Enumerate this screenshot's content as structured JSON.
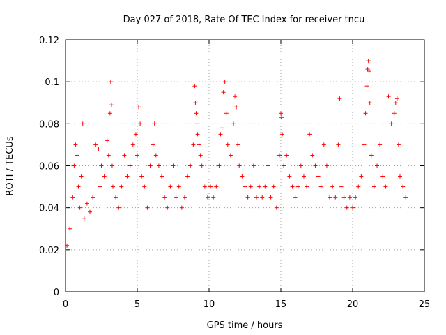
{
  "chart_data": {
    "type": "scatter",
    "title": "Day 027 of 2018, Rate Of TEC Index for receiver tncu",
    "xlabel": "GPS time / hours",
    "ylabel": "ROTI / TECUs",
    "xlim": [
      0,
      25
    ],
    "ylim": [
      0,
      0.12
    ],
    "xticks": [
      0,
      5,
      10,
      15,
      20,
      25
    ],
    "yticks": [
      0,
      0.02,
      0.04,
      0.06,
      0.08,
      0.1,
      0.12
    ],
    "xtick_labels": [
      "0",
      "5",
      "10",
      "15",
      "20",
      "25"
    ],
    "ytick_labels": [
      "0",
      "0.02",
      "0.04",
      "0.06",
      "0.08",
      "0.1",
      "0.12"
    ],
    "grid": true,
    "marker": "plus",
    "color": "#ff0000",
    "series": [
      {
        "name": "ROTI",
        "x": [
          0.1,
          0.3,
          0.5,
          0.6,
          0.7,
          0.8,
          0.9,
          1.0,
          1.1,
          1.2,
          1.3,
          1.5,
          1.7,
          1.9,
          2.1,
          2.3,
          2.4,
          2.5,
          2.7,
          2.9,
          3.0,
          3.1,
          3.15,
          3.2,
          3.25,
          3.3,
          3.5,
          3.7,
          3.9,
          4.1,
          4.3,
          4.5,
          4.7,
          4.9,
          5.0,
          5.1,
          5.2,
          5.3,
          5.5,
          5.7,
          5.9,
          6.1,
          6.2,
          6.3,
          6.5,
          6.7,
          6.9,
          7.1,
          7.3,
          7.5,
          7.7,
          7.9,
          8.1,
          8.3,
          8.5,
          8.7,
          8.9,
          9.0,
          9.05,
          9.1,
          9.15,
          9.2,
          9.3,
          9.4,
          9.5,
          9.7,
          9.9,
          10.1,
          10.3,
          10.5,
          10.7,
          10.8,
          10.9,
          11.0,
          11.1,
          11.2,
          11.3,
          11.5,
          11.7,
          11.8,
          11.9,
          12.0,
          12.1,
          12.3,
          12.5,
          12.7,
          12.9,
          13.1,
          13.3,
          13.5,
          13.7,
          13.9,
          14.1,
          14.3,
          14.5,
          14.7,
          14.9,
          15.0,
          15.05,
          15.1,
          15.2,
          15.4,
          15.6,
          15.8,
          16.0,
          16.2,
          16.4,
          16.6,
          16.8,
          17.0,
          17.2,
          17.4,
          17.6,
          17.8,
          18.0,
          18.2,
          18.4,
          18.6,
          18.8,
          19.0,
          19.1,
          19.2,
          19.4,
          19.6,
          19.8,
          20.0,
          20.2,
          20.4,
          20.6,
          20.8,
          20.9,
          21.0,
          21.05,
          21.1,
          21.15,
          21.2,
          21.3,
          21.5,
          21.7,
          21.9,
          22.1,
          22.3,
          22.5,
          22.7,
          22.9,
          23.0,
          23.1,
          23.2,
          23.3,
          23.5,
          23.7
        ],
        "y": [
          0.022,
          0.03,
          0.045,
          0.06,
          0.07,
          0.065,
          0.05,
          0.04,
          0.055,
          0.08,
          0.035,
          0.042,
          0.038,
          0.045,
          0.07,
          0.068,
          0.05,
          0.06,
          0.055,
          0.072,
          0.065,
          0.085,
          0.1,
          0.089,
          0.06,
          0.05,
          0.045,
          0.04,
          0.05,
          0.065,
          0.055,
          0.06,
          0.07,
          0.075,
          0.065,
          0.088,
          0.08,
          0.055,
          0.05,
          0.04,
          0.06,
          0.07,
          0.08,
          0.065,
          0.06,
          0.055,
          0.045,
          0.04,
          0.05,
          0.06,
          0.045,
          0.05,
          0.04,
          0.045,
          0.055,
          0.06,
          0.07,
          0.098,
          0.09,
          0.085,
          0.08,
          0.075,
          0.07,
          0.065,
          0.06,
          0.05,
          0.045,
          0.05,
          0.045,
          0.05,
          0.06,
          0.075,
          0.078,
          0.095,
          0.1,
          0.085,
          0.07,
          0.065,
          0.08,
          0.093,
          0.088,
          0.07,
          0.06,
          0.055,
          0.05,
          0.045,
          0.05,
          0.06,
          0.045,
          0.05,
          0.045,
          0.05,
          0.06,
          0.045,
          0.05,
          0.04,
          0.065,
          0.085,
          0.083,
          0.075,
          0.06,
          0.065,
          0.055,
          0.05,
          0.045,
          0.05,
          0.06,
          0.055,
          0.05,
          0.075,
          0.065,
          0.06,
          0.055,
          0.05,
          0.07,
          0.06,
          0.045,
          0.05,
          0.045,
          0.07,
          0.092,
          0.05,
          0.045,
          0.04,
          0.045,
          0.04,
          0.045,
          0.05,
          0.055,
          0.07,
          0.085,
          0.098,
          0.106,
          0.11,
          0.105,
          0.09,
          0.065,
          0.05,
          0.06,
          0.07,
          0.055,
          0.05,
          0.093,
          0.08,
          0.085,
          0.09,
          0.092,
          0.07,
          0.055,
          0.05,
          0.045
        ]
      }
    ]
  }
}
